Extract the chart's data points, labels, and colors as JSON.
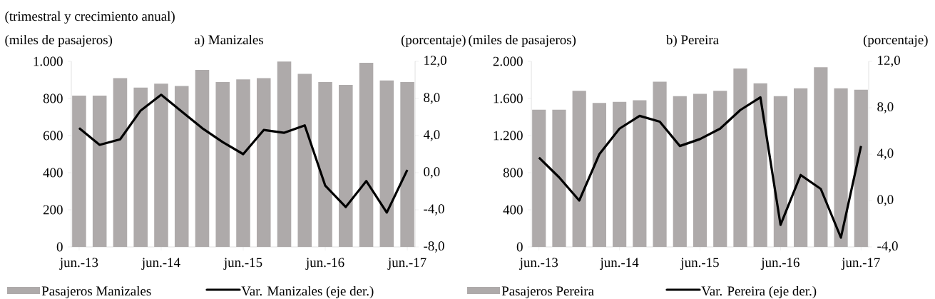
{
  "chart_data": [
    {
      "type": "bar",
      "subtitle": "(trimestral y crecimiento anual)",
      "title": "a) Manizales",
      "ylabel": "(miles de pasajeros)",
      "y2label": "(porcentaje)",
      "categories": [
        "jun.-13",
        null,
        null,
        null,
        "jun.-14",
        null,
        null,
        null,
        "jun.-15",
        null,
        null,
        null,
        "jun.-16",
        null,
        null,
        null,
        "jun.-17"
      ],
      "series": [
        {
          "name": "Pasajeros Manizales",
          "color": "#aeaaaa",
          "values": [
            815,
            815,
            910,
            859,
            880,
            867,
            954,
            888,
            903,
            910,
            999,
            933,
            888,
            873,
            992,
            897,
            888
          ]
        },
        {
          "name": "Var. Manizales (eje der.)",
          "type": "line",
          "axis": "y2",
          "color": "#000000",
          "values": [
            4.8,
            3.0,
            3.6,
            6.7,
            8.4,
            6.6,
            4.8,
            3.3,
            2.0,
            4.6,
            4.3,
            5.1,
            -1.4,
            -3.7,
            -0.9,
            -4.3,
            0.3
          ]
        }
      ],
      "ylim": [
        0,
        1000
      ],
      "yticks": [
        0,
        200,
        400,
        600,
        800,
        {
          "value": 1000,
          "label": "1.000"
        }
      ],
      "y2lim": [
        -8,
        12
      ],
      "y2ticks": [
        {
          "value": -8,
          "label": "-8,0"
        },
        {
          "value": -4,
          "label": "-4,0"
        },
        {
          "value": 0,
          "label": "0,0"
        },
        {
          "value": 4,
          "label": "4,0"
        },
        {
          "value": 8,
          "label": "8,0"
        },
        {
          "value": 12,
          "label": "12,0"
        }
      ],
      "legend": "bottom"
    },
    {
      "type": "bar",
      "title": "b) Pereira",
      "ylabel": "(miles de pasajeros)",
      "y2label": "(porcentaje)",
      "categories": [
        "jun.-13",
        null,
        null,
        null,
        "jun.-14",
        null,
        null,
        null,
        "jun.-15",
        null,
        null,
        null,
        "jun.-16",
        null,
        null,
        null,
        "jun.-17"
      ],
      "series": [
        {
          "name": "Pasajeros Pereira",
          "color": "#aeaaaa",
          "values": [
            1479,
            1479,
            1682,
            1552,
            1564,
            1580,
            1780,
            1625,
            1650,
            1682,
            1923,
            1764,
            1625,
            1710,
            1936,
            1710,
            1694
          ]
        },
        {
          "name": "Var. Pereira (eje der.)",
          "type": "line",
          "axis": "y2",
          "color": "#000000",
          "values": [
            3.7,
            2.0,
            0.0,
            4.0,
            6.2,
            7.3,
            6.8,
            4.7,
            5.3,
            6.2,
            7.8,
            8.9,
            -2.1,
            2.2,
            1.0,
            -3.2,
            4.7
          ]
        }
      ],
      "ylim": [
        0,
        2000
      ],
      "yticks": [
        0,
        400,
        800,
        {
          "value": 1200,
          "label": "1.200"
        },
        {
          "value": 1600,
          "label": "1.600"
        },
        {
          "value": 2000,
          "label": "2.000"
        }
      ],
      "y2lim": [
        -4,
        12
      ],
      "y2ticks": [
        {
          "value": -4,
          "label": "-4,0"
        },
        {
          "value": 0,
          "label": "0,0"
        },
        {
          "value": 4,
          "label": "4,0"
        },
        {
          "value": 8,
          "label": "8,0"
        },
        {
          "value": 12,
          "label": "12,0"
        }
      ],
      "legend": "bottom"
    }
  ]
}
